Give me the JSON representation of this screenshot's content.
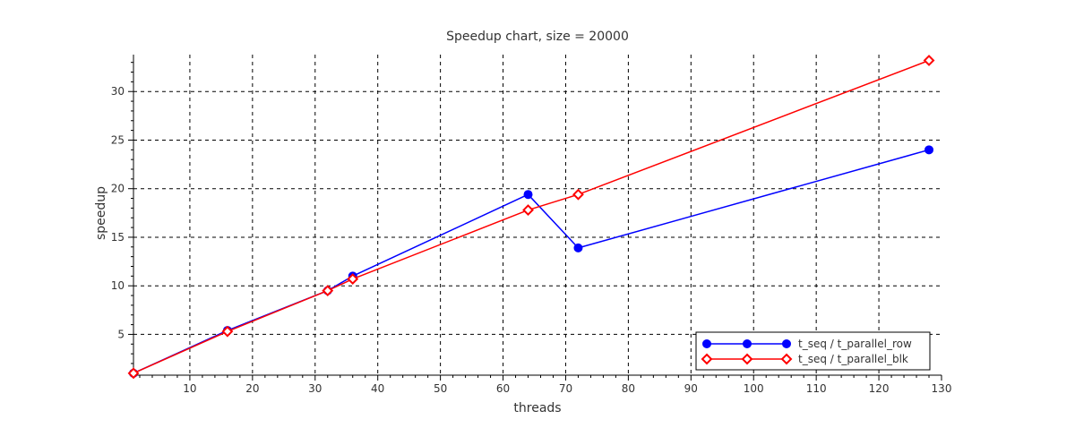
{
  "chart_data": {
    "type": "line",
    "title": "Speedup chart, size = 20000",
    "xlabel": "threads",
    "ylabel": "speedup",
    "xlim": [
      1,
      130
    ],
    "ylim": [
      0.8,
      33.8
    ],
    "xticks": [
      10,
      20,
      30,
      40,
      50,
      60,
      70,
      80,
      90,
      100,
      110,
      120,
      130
    ],
    "yticks": [
      5,
      10,
      15,
      20,
      25,
      30
    ],
    "grid": true,
    "legend_position": "bottom-right",
    "series": [
      {
        "name": "t_seq / t_parallel_row",
        "color": "#0000ff",
        "marker": "circle",
        "x": [
          1,
          16,
          32,
          36,
          64,
          72,
          128
        ],
        "y": [
          1.0,
          5.4,
          9.5,
          11.0,
          19.4,
          13.9,
          24.0
        ]
      },
      {
        "name": "t_seq / t_parallel_blk",
        "color": "#ff0000",
        "marker": "diamond",
        "x": [
          1,
          16,
          32,
          36,
          64,
          72,
          128
        ],
        "y": [
          1.0,
          5.3,
          9.5,
          10.7,
          17.8,
          19.4,
          33.2
        ]
      }
    ]
  }
}
